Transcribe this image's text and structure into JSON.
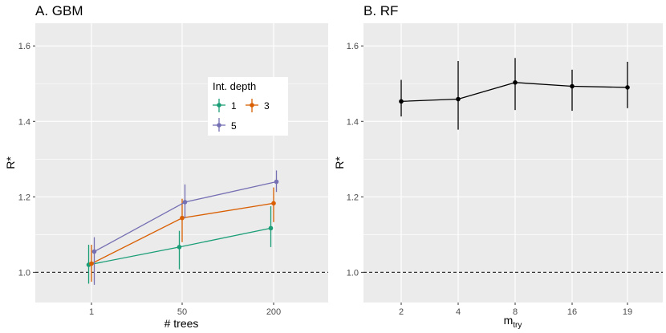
{
  "chart_data": [
    {
      "type": "line",
      "title": "A. GBM",
      "xlabel": "# trees",
      "ylabel": "R*",
      "categories": [
        "1",
        "50",
        "200"
      ],
      "ylim": [
        0.92,
        1.66
      ],
      "yticks": [
        "1.0",
        "1.2",
        "1.4",
        "1.6"
      ],
      "reference_line": 1.0,
      "legend": {
        "title": "Int. depth",
        "entries": [
          "1",
          "3",
          "5"
        ],
        "placement": "top-right inside"
      },
      "series": [
        {
          "name": "1",
          "color": "#1b9e77",
          "values": [
            1.02,
            1.067,
            1.117
          ],
          "lower": [
            0.97,
            1.008,
            1.067
          ],
          "upper": [
            1.073,
            1.11,
            1.175
          ]
        },
        {
          "name": "3",
          "color": "#d95f02",
          "values": [
            1.023,
            1.144,
            1.183
          ],
          "lower": [
            0.975,
            1.08,
            1.133
          ],
          "upper": [
            1.073,
            1.195,
            1.225
          ]
        },
        {
          "name": "5",
          "color": "#7570b3",
          "values": [
            1.055,
            1.186,
            1.24
          ],
          "lower": [
            0.967,
            1.143,
            1.213
          ],
          "upper": [
            1.093,
            1.233,
            1.27
          ]
        }
      ]
    },
    {
      "type": "line",
      "title": "B. RF",
      "xlabel_main": "m",
      "xlabel_sub": "try",
      "ylabel": "R*",
      "categories": [
        "2",
        "4",
        "8",
        "16",
        "19"
      ],
      "ylim": [
        0.92,
        1.66
      ],
      "yticks": [
        "1.0",
        "1.2",
        "1.4",
        "1.6"
      ],
      "reference_line": 1.0,
      "series": [
        {
          "name": "RF",
          "color": "#000000",
          "values": [
            1.453,
            1.459,
            1.503,
            1.493,
            1.49
          ],
          "lower": [
            1.413,
            1.378,
            1.43,
            1.428,
            1.435
          ],
          "upper": [
            1.51,
            1.56,
            1.568,
            1.537,
            1.558
          ]
        }
      ]
    }
  ]
}
